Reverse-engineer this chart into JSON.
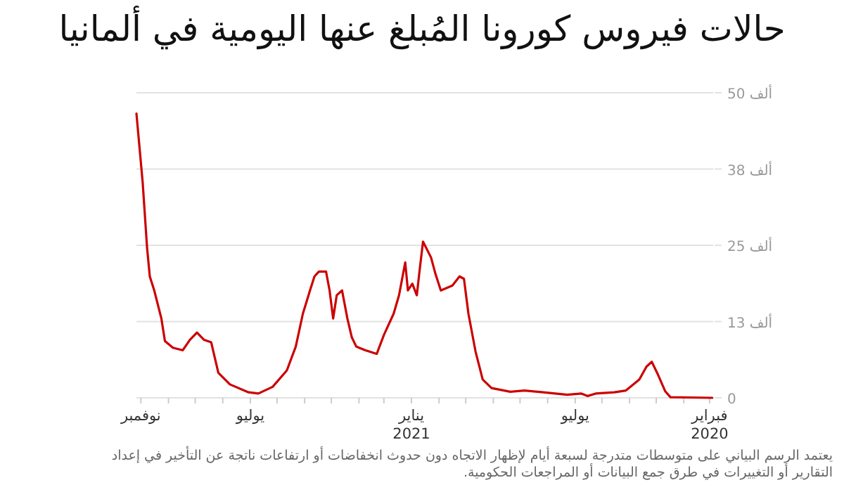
{
  "chart_data": {
    "type": "line",
    "title": "حالات فيروس كورونا المُبلغ عنها اليومية في ألمانيا",
    "annotations": [
      "يعتمد الرسم البياني على متوسطات متدرجة لسبعة أيام لإظهار الاتجاه دون حدوث انخفاضات أو ارتفاعات ناتجة عن التأخير في إعداد التقارير أو التغييرات في طرق جمع البيانات أو المراجعات الحكومية."
    ],
    "xlim": [
      "2021-11-06",
      "2020-01-28"
    ],
    "ylim": [
      0,
      50
    ],
    "xticks": [
      {
        "value": "2020-02-01",
        "label": "فبراير\n2020"
      },
      {
        "value": "2020-03-01",
        "label": null
      },
      {
        "value": "2020-04-01",
        "label": null
      },
      {
        "value": "2020-05-01",
        "label": null
      },
      {
        "value": "2020-06-01",
        "label": null
      },
      {
        "value": "2020-07-01",
        "label": "يوليو"
      },
      {
        "value": "2020-08-01",
        "label": null
      },
      {
        "value": "2020-09-01",
        "label": null
      },
      {
        "value": "2020-10-01",
        "label": null
      },
      {
        "value": "2020-11-01",
        "label": null
      },
      {
        "value": "2020-12-01",
        "label": null
      },
      {
        "value": "2021-01-01",
        "label": "يناير\n2021"
      },
      {
        "value": "2021-02-01",
        "label": null
      },
      {
        "value": "2021-03-01",
        "label": null
      },
      {
        "value": "2021-04-01",
        "label": null
      },
      {
        "value": "2021-05-01",
        "label": null
      },
      {
        "value": "2021-06-01",
        "label": null
      },
      {
        "value": "2021-07-01",
        "label": "يوليو"
      },
      {
        "value": "2021-08-01",
        "label": null
      },
      {
        "value": "2021-09-01",
        "label": null
      },
      {
        "value": "2021-10-01",
        "label": null
      },
      {
        "value": "2021-11-01",
        "label": "نوفمبر"
      }
    ],
    "yticks": [
      0,
      {
        "value": 12.5,
        "label": "13 ألف"
      },
      {
        "value": 25,
        "label": "25 ألف"
      },
      {
        "value": 37.5,
        "label": "38 ألف"
      },
      {
        "value": 50,
        "label": "50 ألف"
      }
    ],
    "grid": "y",
    "x": [
      "2020-01-29",
      "2020-03-16",
      "2020-03-22",
      "2020-03-30",
      "2020-04-06",
      "2020-04-12",
      "2020-04-20",
      "2020-05-05",
      "2020-05-18",
      "2020-06-08",
      "2020-06-17",
      "2020-06-24",
      "2020-07-10",
      "2020-08-06",
      "2020-08-27",
      "2020-09-12",
      "2020-10-03",
      "2020-10-13",
      "2020-10-21",
      "2020-10-29",
      "2020-11-03",
      "2020-11-08",
      "2020-11-16",
      "2020-11-29",
      "2020-12-05",
      "2020-12-10",
      "2020-12-19",
      "2020-12-23",
      "2020-12-26",
      "2020-12-31",
      "2021-01-05",
      "2021-01-08",
      "2021-01-15",
      "2021-01-21",
      "2021-02-01",
      "2021-02-09",
      "2021-02-22",
      "2021-03-04",
      "2021-03-09",
      "2021-03-14",
      "2021-03-20",
      "2021-03-26",
      "2021-03-30",
      "2021-04-03",
      "2021-04-07",
      "2021-04-15",
      "2021-04-20",
      "2021-04-25",
      "2021-05-03",
      "2021-05-11",
      "2021-05-21",
      "2021-06-06",
      "2021-06-22",
      "2021-07-03",
      "2021-07-24",
      "2021-08-06",
      "2021-08-14",
      "2021-08-22",
      "2021-08-30",
      "2021-09-07",
      "2021-09-15",
      "2021-09-26",
      "2021-10-05",
      "2021-10-09",
      "2021-10-17",
      "2021-10-22",
      "2021-10-25",
      "2021-10-30",
      "2021-11-06"
    ],
    "series": [
      {
        "color": "#cc0000",
        "values": [
          0,
          0.1,
          1.1,
          3.8,
          5.9,
          5.1,
          3.0,
          1.2,
          0.9,
          0.7,
          0.3,
          0.7,
          0.5,
          0.9,
          1.2,
          1.0,
          1.6,
          3.0,
          7.6,
          13.8,
          19.5,
          19.9,
          18.4,
          17.6,
          20.3,
          23.0,
          25.6,
          20.7,
          16.8,
          18.7,
          17.6,
          22.2,
          16.8,
          13.8,
          10.3,
          7.2,
          7.8,
          8.4,
          9.9,
          13.0,
          17.6,
          16.8,
          13.0,
          17.6,
          20.7,
          20.7,
          19.9,
          17.6,
          13.8,
          8.4,
          4.5,
          1.8,
          0.7,
          0.9,
          2.2,
          4.1,
          9.1,
          9.5,
          10.7,
          9.5,
          7.8,
          8.2,
          9.3,
          13.0,
          17.6,
          19.9,
          24.5,
          35.3,
          46.6
        ]
      }
    ]
  }
}
